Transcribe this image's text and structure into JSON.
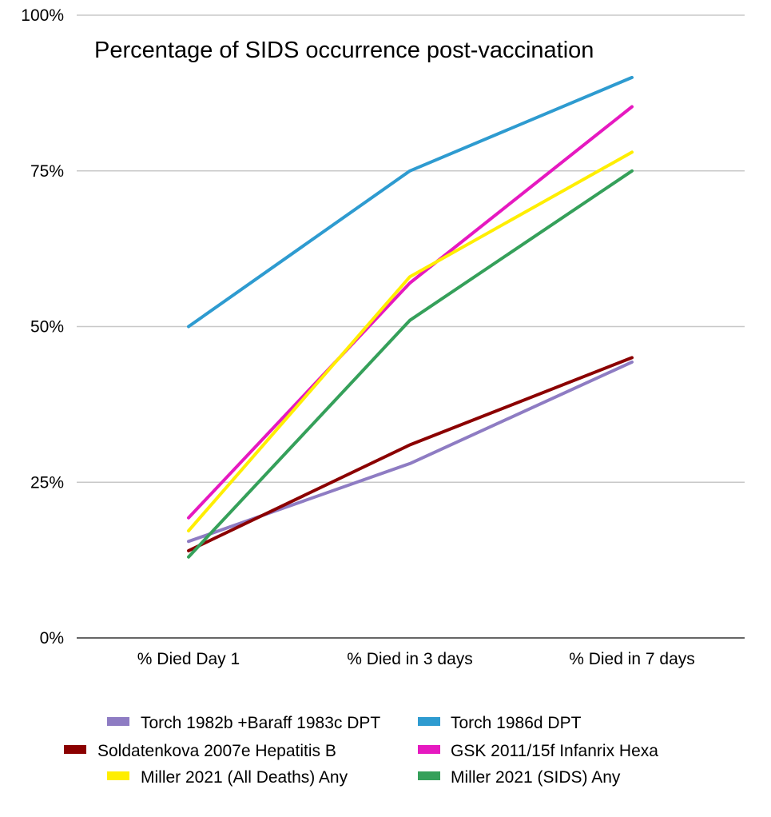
{
  "chart_data": {
    "type": "line",
    "title": "Percentage of SIDS occurrence post-vaccination",
    "xlabel": "",
    "ylabel": "",
    "categories": [
      "% Died Day 1",
      "% Died in 3 days",
      "% Died in 7 days"
    ],
    "ylim": [
      0,
      100
    ],
    "yticks": [
      0,
      25,
      50,
      75,
      100
    ],
    "ytick_labels": [
      "0%",
      "25%",
      "50%",
      "75%",
      "100%"
    ],
    "grid": "horizontal",
    "legend_position": "bottom",
    "series": [
      {
        "name": "Torch 1982b +Baraff 1983c DPT",
        "color": "#8e7cc3",
        "values": [
          15.5,
          28,
          44.3
        ]
      },
      {
        "name": "Torch 1986d DPT",
        "color": "#2e9bd0",
        "values": [
          50,
          75,
          90
        ]
      },
      {
        "name": "Soldatenkova 2007e Hepatitis B",
        "color": "#8b0000",
        "values": [
          14,
          31,
          45
        ]
      },
      {
        "name": "GSK 2011/15f Infanrix Hexa",
        "color": "#e619c0",
        "values": [
          19.3,
          57,
          85.3
        ]
      },
      {
        "name": "Miller 2021 (All Deaths) Any",
        "color": "#ffee00",
        "values": [
          17.2,
          58,
          78
        ]
      },
      {
        "name": "Miller 2021 (SIDS) Any",
        "color": "#35a05a",
        "values": [
          13,
          51,
          75
        ]
      }
    ]
  }
}
